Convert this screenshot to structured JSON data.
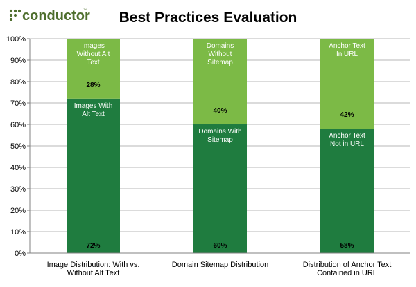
{
  "brand": {
    "name": "conductor",
    "trademark": "™"
  },
  "colors": {
    "lower_segment": "#1f7c3f",
    "upper_segment": "#7cba46",
    "grid": "#b7b7b7",
    "axis": "#808080",
    "logo": "#4f6f2e"
  },
  "chart_data": {
    "type": "bar",
    "stacked": true,
    "title": "Best Practices Evaluation",
    "xlabel": "",
    "ylabel": "",
    "ylim": [
      0,
      100
    ],
    "y_ticks": [
      "0%",
      "10%",
      "20%",
      "30%",
      "40%",
      "50%",
      "60%",
      "70%",
      "80%",
      "90%",
      "100%"
    ],
    "grid": true,
    "legend": "none",
    "categories": [
      [
        "Image Distribution:  With vs.",
        "Without Alt Text"
      ],
      [
        "Domain Sitemap  Distribution"
      ],
      [
        "Distribution of Anchor Text",
        "Contained in URL"
      ]
    ],
    "series": [
      {
        "values": [
          72,
          60,
          58
        ],
        "value_labels": [
          "72%",
          "60%",
          "58%"
        ],
        "segment_labels": [
          [
            "Images With",
            "Alt Text"
          ],
          [
            "Domains With",
            "Sitemap"
          ],
          [
            "Anchor Text",
            "Not  in URL"
          ]
        ]
      },
      {
        "values": [
          28,
          40,
          42
        ],
        "value_labels": [
          "28%",
          "40%",
          "42%"
        ],
        "segment_labels": [
          [
            "Images",
            "Without Alt",
            "Text"
          ],
          [
            "Domains",
            "Without",
            "Sitemap"
          ],
          [
            "Anchor Text",
            "In URL"
          ]
        ]
      }
    ]
  }
}
